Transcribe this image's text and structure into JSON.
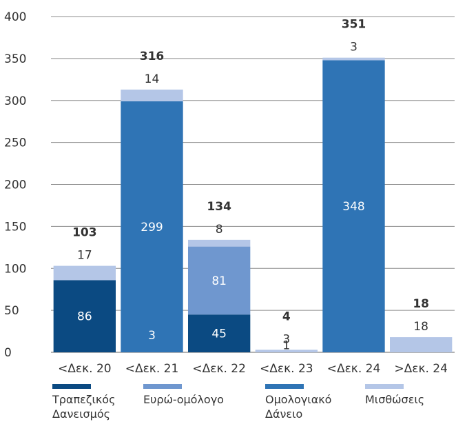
{
  "chart_data": {
    "type": "bar",
    "stacked": true,
    "categories": [
      "<Δεκ. 20",
      "<Δεκ. 21",
      "<Δεκ. 22",
      "<Δεκ. 23",
      "<Δεκ. 24",
      ">Δεκ. 24"
    ],
    "totals": [
      103,
      316,
      134,
      4,
      351,
      18
    ],
    "series": [
      {
        "name": "Τραπεζικός Δανεισμός",
        "color": "#0b4a82",
        "text_color": "#ffffff",
        "values": [
          86,
          0,
          45,
          0,
          0,
          0
        ],
        "labels": [
          "86",
          "",
          "45",
          "",
          "",
          ""
        ]
      },
      {
        "name": "Ευρώ-ομόλογο",
        "color": "#6f97cf",
        "text_color": "#ffffff",
        "values": [
          0,
          0,
          81,
          0,
          0,
          0
        ],
        "labels": [
          "",
          "",
          "81",
          "",
          "",
          ""
        ]
      },
      {
        "name": "Ομολογιακό Δάνειο",
        "color": "#2f74b5",
        "text_color": "#ffffff",
        "values": [
          0,
          299,
          0,
          0,
          348,
          0
        ],
        "labels": [
          "",
          "299",
          "",
          "",
          "348",
          ""
        ]
      },
      {
        "name": "Μισθώσεις",
        "color": "#b4c6e7",
        "text_color": "#333333",
        "values": [
          17,
          14,
          8,
          3,
          3,
          18
        ],
        "labels": [
          "17",
          "14",
          "8",
          "3",
          "3",
          "18"
        ]
      }
    ],
    "extra_labels": [
      {
        "category": 1,
        "text": "3",
        "series": 0,
        "value": 3
      },
      {
        "category": 3,
        "text": "1",
        "series": 0,
        "value": 1
      }
    ],
    "ylim": [
      0,
      400
    ],
    "yticks": [
      0,
      50,
      100,
      150,
      200,
      250,
      300,
      350,
      400
    ],
    "grid": true,
    "legend_position": "bottom",
    "title": "",
    "xlabel": "",
    "ylabel": ""
  }
}
